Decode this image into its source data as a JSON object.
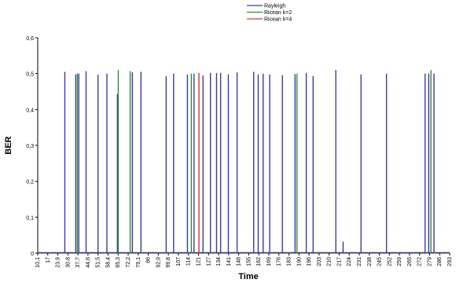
{
  "chart_data": {
    "type": "line",
    "title": "",
    "xlabel": "Time",
    "ylabel": "BER",
    "ylim": [
      0,
      0.6
    ],
    "yticks": [
      "0",
      "0,1",
      "0,2",
      "0,3",
      "0,4",
      "0,5",
      "0,6"
    ],
    "yticks_values": [
      0,
      0.1,
      0.2,
      0.3,
      0.4,
      0.5,
      0.6
    ],
    "categories": [
      "10,1",
      "17",
      "23,9",
      "30,8",
      "37,7",
      "44,6",
      "51,5",
      "58,4",
      "65,3",
      "72,2",
      "79,1",
      "86",
      "92,9",
      "99,8",
      "107",
      "114",
      "121",
      "127",
      "134",
      "141",
      "148",
      "155",
      "162",
      "169",
      "176",
      "183",
      "190",
      "196",
      "203",
      "210",
      "217",
      "224",
      "231",
      "238",
      "245",
      "252",
      "259",
      "265",
      "272",
      "279",
      "286",
      "293"
    ],
    "grid": false,
    "legend_position": "top-center",
    "series": [
      {
        "name": "Rayleigh",
        "color": "#3b3b9c",
        "spikes": [
          {
            "x": 28.7,
            "y": 0.505
          },
          {
            "x": 36.2,
            "y": 0.498
          },
          {
            "x": 38.3,
            "y": 0.5
          },
          {
            "x": 43.3,
            "y": 0.507
          },
          {
            "x": 51.5,
            "y": 0.497
          },
          {
            "x": 57.6,
            "y": 0.5
          },
          {
            "x": 64.8,
            "y": 0.443
          },
          {
            "x": 75.1,
            "y": 0.504
          },
          {
            "x": 81.0,
            "y": 0.505
          },
          {
            "x": 98.3,
            "y": 0.493
          },
          {
            "x": 103.4,
            "y": 0.5
          },
          {
            "x": 112.9,
            "y": 0.497
          },
          {
            "x": 117.4,
            "y": 0.5
          },
          {
            "x": 123.6,
            "y": 0.495
          },
          {
            "x": 128.7,
            "y": 0.502
          },
          {
            "x": 132.9,
            "y": 0.502
          },
          {
            "x": 135.7,
            "y": 0.502
          },
          {
            "x": 141.0,
            "y": 0.498
          },
          {
            "x": 147.0,
            "y": 0.503
          },
          {
            "x": 158.4,
            "y": 0.505
          },
          {
            "x": 161.5,
            "y": 0.498
          },
          {
            "x": 164.9,
            "y": 0.5
          },
          {
            "x": 169.4,
            "y": 0.498
          },
          {
            "x": 178.1,
            "y": 0.496
          },
          {
            "x": 186.8,
            "y": 0.499
          },
          {
            "x": 194.5,
            "y": 0.502
          },
          {
            "x": 199.2,
            "y": 0.493
          },
          {
            "x": 214.8,
            "y": 0.51
          },
          {
            "x": 219.8,
            "y": 0.032
          },
          {
            "x": 232.1,
            "y": 0.498
          },
          {
            "x": 249.6,
            "y": 0.5
          },
          {
            "x": 276.1,
            "y": 0.5
          },
          {
            "x": 278.6,
            "y": 0.5
          },
          {
            "x": 282.2,
            "y": 0.5
          }
        ]
      },
      {
        "name": "Ricean k=2",
        "color": "#2e8b2e",
        "spikes": [
          {
            "x": 37.3,
            "y": 0.5
          },
          {
            "x": 65.4,
            "y": 0.51
          },
          {
            "x": 73.6,
            "y": 0.507
          },
          {
            "x": 115.6,
            "y": 0.5
          },
          {
            "x": 188.1,
            "y": 0.5
          },
          {
            "x": 280.1,
            "y": 0.51
          }
        ]
      },
      {
        "name": "Ricean k=4",
        "color": "#e03030",
        "spikes": [
          {
            "x": 120.8,
            "y": 0.502
          }
        ]
      }
    ]
  }
}
